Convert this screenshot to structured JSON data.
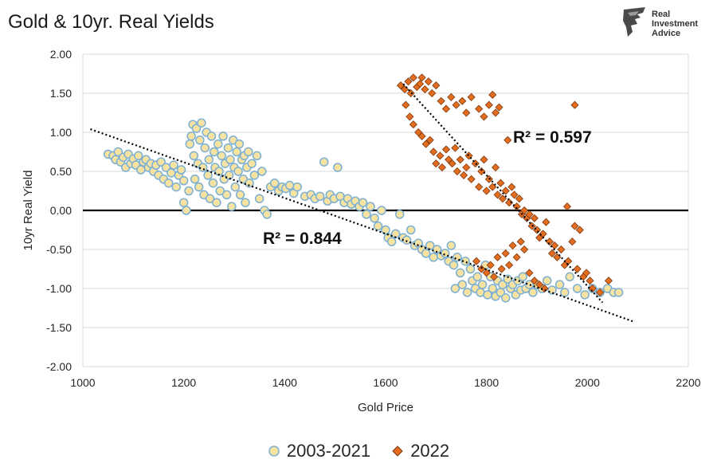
{
  "chart_data": {
    "type": "scatter",
    "title": "Gold & 10yr. Real Yields",
    "xlabel": "Gold Price",
    "ylabel": "10yr Real Yield",
    "xlim": [
      1000,
      2200
    ],
    "ylim": [
      -2.0,
      2.0
    ],
    "x_ticks": [
      "1000",
      "1200",
      "1400",
      "1600",
      "1800",
      "2000",
      "2200"
    ],
    "y_ticks": [
      "2.00",
      "1.50",
      "1.00",
      "0.50",
      "0.00",
      "-0.50",
      "-1.00",
      "-1.50",
      "-2.00"
    ],
    "grid": "horizontal",
    "zero_line": true,
    "legend_position": "bottom",
    "series": [
      {
        "name": "2003-2021",
        "marker": "circle",
        "fill": "#F6E3A2",
        "stroke": "#7BAFD4",
        "r_squared": "R² = 0.844",
        "trendline": {
          "x": [
            1015,
            2090
          ],
          "y": [
            1.04,
            -1.42
          ]
        },
        "points": [
          [
            1050,
            0.72
          ],
          [
            1060,
            0.7
          ],
          [
            1065,
            0.65
          ],
          [
            1070,
            0.75
          ],
          [
            1075,
            0.62
          ],
          [
            1080,
            0.68
          ],
          [
            1085,
            0.55
          ],
          [
            1090,
            0.72
          ],
          [
            1095,
            0.6
          ],
          [
            1100,
            0.66
          ],
          [
            1105,
            0.58
          ],
          [
            1110,
            0.7
          ],
          [
            1115,
            0.52
          ],
          [
            1120,
            0.62
          ],
          [
            1125,
            0.65
          ],
          [
            1130,
            0.55
          ],
          [
            1135,
            0.6
          ],
          [
            1140,
            0.5
          ],
          [
            1145,
            0.58
          ],
          [
            1150,
            0.45
          ],
          [
            1155,
            0.62
          ],
          [
            1160,
            0.4
          ],
          [
            1165,
            0.55
          ],
          [
            1170,
            0.35
          ],
          [
            1175,
            0.48
          ],
          [
            1180,
            0.58
          ],
          [
            1185,
            0.3
          ],
          [
            1190,
            0.45
          ],
          [
            1195,
            0.52
          ],
          [
            1200,
            0.38
          ],
          [
            1200,
            0.1
          ],
          [
            1205,
            0.0
          ],
          [
            1210,
            0.25
          ],
          [
            1212,
            0.85
          ],
          [
            1215,
            0.95
          ],
          [
            1218,
            1.1
          ],
          [
            1220,
            0.7
          ],
          [
            1222,
            0.4
          ],
          [
            1225,
            1.05
          ],
          [
            1228,
            0.6
          ],
          [
            1230,
            0.3
          ],
          [
            1232,
            0.9
          ],
          [
            1235,
            1.12
          ],
          [
            1238,
            0.55
          ],
          [
            1240,
            0.2
          ],
          [
            1242,
            0.8
          ],
          [
            1245,
            1.0
          ],
          [
            1248,
            0.45
          ],
          [
            1250,
            0.65
          ],
          [
            1252,
            0.15
          ],
          [
            1255,
            0.95
          ],
          [
            1258,
            0.35
          ],
          [
            1260,
            0.75
          ],
          [
            1262,
            0.55
          ],
          [
            1265,
            0.1
          ],
          [
            1268,
            0.85
          ],
          [
            1270,
            0.5
          ],
          [
            1272,
            0.25
          ],
          [
            1275,
            0.7
          ],
          [
            1278,
            0.95
          ],
          [
            1280,
            0.4
          ],
          [
            1282,
            0.6
          ],
          [
            1285,
            0.2
          ],
          [
            1288,
            0.8
          ],
          [
            1290,
            0.45
          ],
          [
            1292,
            0.65
          ],
          [
            1295,
            0.05
          ],
          [
            1298,
            0.9
          ],
          [
            1300,
            0.55
          ],
          [
            1302,
            0.3
          ],
          [
            1305,
            0.75
          ],
          [
            1308,
            0.5
          ],
          [
            1310,
            0.85
          ],
          [
            1312,
            0.2
          ],
          [
            1315,
            0.65
          ],
          [
            1318,
            0.4
          ],
          [
            1320,
            0.7
          ],
          [
            1322,
            0.1
          ],
          [
            1325,
            0.55
          ],
          [
            1328,
            0.75
          ],
          [
            1330,
            0.35
          ],
          [
            1335,
            0.6
          ],
          [
            1340,
            0.45
          ],
          [
            1345,
            0.7
          ],
          [
            1350,
            0.15
          ],
          [
            1355,
            0.5
          ],
          [
            1360,
            0.0
          ],
          [
            1365,
            -0.05
          ],
          [
            1372,
            0.3
          ],
          [
            1380,
            0.35
          ],
          [
            1388,
            0.25
          ],
          [
            1395,
            0.3
          ],
          [
            1402,
            0.28
          ],
          [
            1410,
            0.32
          ],
          [
            1418,
            0.22
          ],
          [
            1425,
            0.3
          ],
          [
            1440,
            0.18
          ],
          [
            1452,
            0.2
          ],
          [
            1460,
            0.15
          ],
          [
            1470,
            0.18
          ],
          [
            1478,
            0.62
          ],
          [
            1485,
            0.12
          ],
          [
            1490,
            0.2
          ],
          [
            1498,
            0.15
          ],
          [
            1505,
            0.55
          ],
          [
            1510,
            0.18
          ],
          [
            1518,
            0.1
          ],
          [
            1525,
            0.15
          ],
          [
            1532,
            0.08
          ],
          [
            1540,
            0.12
          ],
          [
            1548,
            0.05
          ],
          [
            1555,
            0.1
          ],
          [
            1562,
            -0.05
          ],
          [
            1570,
            0.05
          ],
          [
            1578,
            -0.1
          ],
          [
            1585,
            -0.2
          ],
          [
            1592,
            0.0
          ],
          [
            1600,
            -0.25
          ],
          [
            1605,
            -0.35
          ],
          [
            1612,
            -0.4
          ],
          [
            1620,
            -0.3
          ],
          [
            1628,
            -0.05
          ],
          [
            1635,
            -0.35
          ],
          [
            1642,
            -0.38
          ],
          [
            1650,
            -0.25
          ],
          [
            1658,
            -0.45
          ],
          [
            1665,
            -0.42
          ],
          [
            1672,
            -0.5
          ],
          [
            1680,
            -0.55
          ],
          [
            1688,
            -0.45
          ],
          [
            1695,
            -0.6
          ],
          [
            1702,
            -0.5
          ],
          [
            1710,
            -0.58
          ],
          [
            1718,
            -0.55
          ],
          [
            1725,
            -0.65
          ],
          [
            1730,
            -0.45
          ],
          [
            1735,
            -0.7
          ],
          [
            1738,
            -1.0
          ],
          [
            1742,
            -0.6
          ],
          [
            1748,
            -0.8
          ],
          [
            1752,
            -0.95
          ],
          [
            1758,
            -0.65
          ],
          [
            1762,
            -1.05
          ],
          [
            1768,
            -0.75
          ],
          [
            1772,
            -0.9
          ],
          [
            1778,
            -1.0
          ],
          [
            1782,
            -0.85
          ],
          [
            1788,
            -1.05
          ],
          [
            1792,
            -0.95
          ],
          [
            1798,
            -0.7
          ],
          [
            1802,
            -1.08
          ],
          [
            1808,
            -0.85
          ],
          [
            1812,
            -1.0
          ],
          [
            1818,
            -1.1
          ],
          [
            1822,
            -0.9
          ],
          [
            1828,
            -1.05
          ],
          [
            1832,
            -0.95
          ],
          [
            1838,
            -1.12
          ],
          [
            1842,
            -0.88
          ],
          [
            1848,
            -1.0
          ],
          [
            1852,
            -0.95
          ],
          [
            1858,
            -1.08
          ],
          [
            1862,
            -0.9
          ],
          [
            1868,
            -1.02
          ],
          [
            1872,
            -0.85
          ],
          [
            1878,
            -1.0
          ],
          [
            1885,
            -0.95
          ],
          [
            1892,
            -1.05
          ],
          [
            1900,
            -0.95
          ],
          [
            1910,
            -1.0
          ],
          [
            1920,
            -0.9
          ],
          [
            1930,
            -1.02
          ],
          [
            1945,
            -0.95
          ],
          [
            1955,
            -1.05
          ],
          [
            1965,
            -0.85
          ],
          [
            1980,
            -1.0
          ],
          [
            1995,
            -1.08
          ],
          [
            2010,
            -1.0
          ],
          [
            2025,
            -1.05
          ],
          [
            2040,
            -1.0
          ],
          [
            2052,
            -1.05
          ],
          [
            2062,
            -1.05
          ]
        ]
      },
      {
        "name": "2022",
        "marker": "diamond",
        "fill": "#E46C1F",
        "stroke": "#7A3A10",
        "r_squared": "R² = 0.597",
        "trendline": {
          "x": [
            1635,
            2030
          ],
          "y": [
            1.62,
            -1.18
          ]
        },
        "points": [
          [
            1630,
            1.6
          ],
          [
            1638,
            1.55
          ],
          [
            1645,
            1.65
          ],
          [
            1650,
            1.5
          ],
          [
            1655,
            1.7
          ],
          [
            1662,
            1.58
          ],
          [
            1668,
            1.62
          ],
          [
            1672,
            1.7
          ],
          [
            1678,
            1.55
          ],
          [
            1685,
            1.65
          ],
          [
            1692,
            1.5
          ],
          [
            1700,
            1.6
          ],
          [
            1710,
            1.4
          ],
          [
            1720,
            1.3
          ],
          [
            1730,
            1.45
          ],
          [
            1740,
            1.35
          ],
          [
            1752,
            1.4
          ],
          [
            1760,
            1.25
          ],
          [
            1770,
            1.45
          ],
          [
            1785,
            1.3
          ],
          [
            1795,
            1.2
          ],
          [
            1805,
            1.35
          ],
          [
            1812,
            1.48
          ],
          [
            1818,
            1.25
          ],
          [
            1825,
            1.32
          ],
          [
            1640,
            1.35
          ],
          [
            1648,
            1.2
          ],
          [
            1655,
            1.1
          ],
          [
            1665,
            1.0
          ],
          [
            1672,
            0.95
          ],
          [
            1680,
            0.85
          ],
          [
            1688,
            0.9
          ],
          [
            1695,
            0.75
          ],
          [
            1700,
            0.6
          ],
          [
            1708,
            0.7
          ],
          [
            1712,
            0.55
          ],
          [
            1720,
            0.78
          ],
          [
            1725,
            0.65
          ],
          [
            1732,
            0.6
          ],
          [
            1738,
            0.8
          ],
          [
            1742,
            0.5
          ],
          [
            1748,
            0.65
          ],
          [
            1755,
            0.45
          ],
          [
            1760,
            0.55
          ],
          [
            1765,
            0.7
          ],
          [
            1770,
            0.4
          ],
          [
            1778,
            0.6
          ],
          [
            1785,
            0.3
          ],
          [
            1790,
            0.5
          ],
          [
            1795,
            0.65
          ],
          [
            1800,
            0.25
          ],
          [
            1805,
            0.4
          ],
          [
            1812,
            0.3
          ],
          [
            1818,
            0.55
          ],
          [
            1822,
            0.2
          ],
          [
            1828,
            0.35
          ],
          [
            1832,
            0.15
          ],
          [
            1838,
            0.25
          ],
          [
            1842,
            0.9
          ],
          [
            1845,
            0.1
          ],
          [
            1850,
            0.3
          ],
          [
            1855,
            0.2
          ],
          [
            1860,
            0.05
          ],
          [
            1865,
            0.15
          ],
          [
            1870,
            -0.05
          ],
          [
            1875,
            0.0
          ],
          [
            1880,
            -0.1
          ],
          [
            1885,
            -0.05
          ],
          [
            1890,
            -0.2
          ],
          [
            1895,
            -0.1
          ],
          [
            1900,
            -0.25
          ],
          [
            1905,
            -0.35
          ],
          [
            1912,
            -0.3
          ],
          [
            1918,
            -0.15
          ],
          [
            1925,
            -0.4
          ],
          [
            1930,
            -0.55
          ],
          [
            1935,
            -0.45
          ],
          [
            1940,
            -0.6
          ],
          [
            1948,
            -0.5
          ],
          [
            1955,
            -0.7
          ],
          [
            1962,
            -0.65
          ],
          [
            1970,
            -0.4
          ],
          [
            1975,
            -0.2
          ],
          [
            1980,
            -0.75
          ],
          [
            1985,
            -0.25
          ],
          [
            1992,
            -0.85
          ],
          [
            1998,
            -0.8
          ],
          [
            2005,
            -0.9
          ],
          [
            2010,
            -1.0
          ],
          [
            1975,
            1.35
          ],
          [
            1960,
            0.05
          ],
          [
            1780,
            -0.65
          ],
          [
            1790,
            -0.75
          ],
          [
            1800,
            -0.8
          ],
          [
            1808,
            -0.7
          ],
          [
            1815,
            -0.85
          ],
          [
            1822,
            -0.6
          ],
          [
            1830,
            -0.75
          ],
          [
            1838,
            -0.55
          ],
          [
            1845,
            -0.7
          ],
          [
            1852,
            -0.45
          ],
          [
            1860,
            -0.6
          ],
          [
            1868,
            -0.4
          ],
          [
            1875,
            -0.5
          ],
          [
            1885,
            -0.8
          ],
          [
            1895,
            -0.9
          ],
          [
            1905,
            -0.95
          ],
          [
            1915,
            -1.0
          ],
          [
            2025,
            -1.05
          ],
          [
            2042,
            -0.9
          ]
        ]
      }
    ]
  },
  "logo": {
    "lines": [
      "Real",
      "Investment",
      "Advice"
    ]
  }
}
